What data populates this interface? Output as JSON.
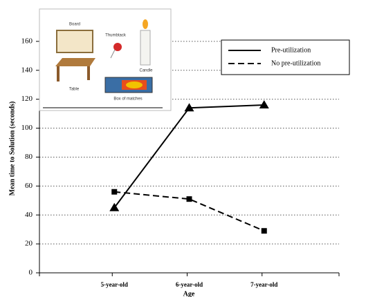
{
  "chart_data": {
    "type": "line",
    "y_label": "Mean time to Solution (seconds)",
    "x_label": "Age",
    "categories": [
      "5-year-old",
      "6-year-old",
      "7-year-old"
    ],
    "series": [
      {
        "name": "Pre-utilization",
        "color": "#000000",
        "marker": "triangle",
        "dashed": false,
        "values": [
          45,
          114,
          116
        ]
      },
      {
        "name": "No pre-utilization",
        "color": "#000000",
        "marker": "square",
        "dashed": true,
        "values": [
          56,
          51,
          29
        ]
      }
    ],
    "ylim": [
      0,
      180
    ],
    "yticks": [
      0,
      20,
      40,
      60,
      80,
      100,
      120,
      140,
      160
    ],
    "grid": true,
    "legend": "upper right"
  },
  "inset": {
    "labels": [
      "Board",
      "Thumbtack",
      "Candle",
      "Table",
      "Box of matches"
    ]
  }
}
